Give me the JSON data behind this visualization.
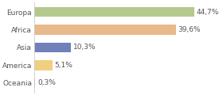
{
  "categories": [
    "Europa",
    "Africa",
    "Asia",
    "America",
    "Oceania"
  ],
  "values": [
    44.7,
    39.6,
    10.3,
    5.1,
    0.3
  ],
  "labels": [
    "44,7%",
    "39,6%",
    "10,3%",
    "5,1%",
    "0,3%"
  ],
  "bar_colors": [
    "#b5c98e",
    "#e8b98a",
    "#7080b8",
    "#f0d080",
    "#d88080"
  ],
  "background_color": "#ffffff",
  "xlim": [
    0,
    52
  ],
  "label_fontsize": 6.5,
  "tick_fontsize": 6.5,
  "bar_height": 0.55
}
